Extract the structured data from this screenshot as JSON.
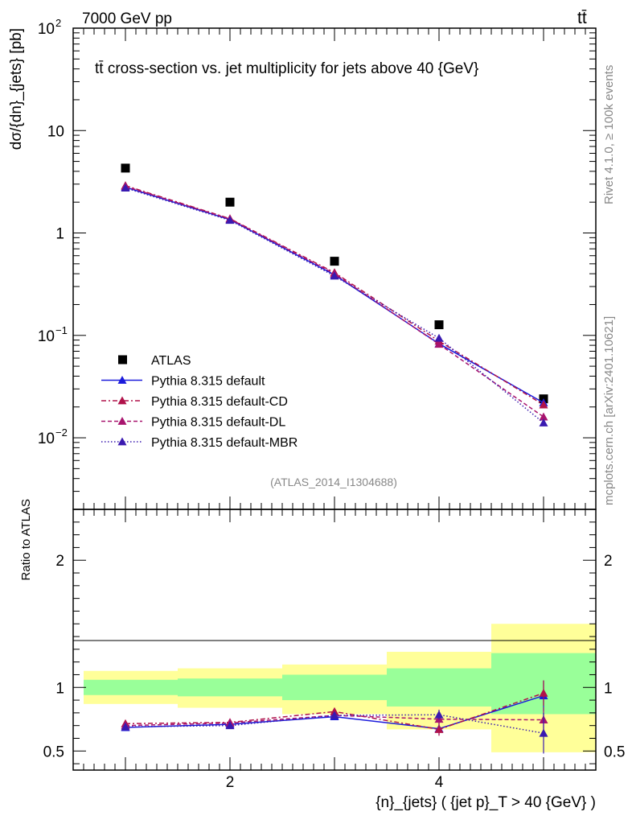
{
  "header": {
    "left": "7000 GeV pp",
    "right": "tt̄",
    "rivet_label": "Rivet 4.1.0, ≥ 100k events",
    "mcplots_label": "mcplots.cern.ch [arXiv:2401.10621]",
    "analysis_id": "(ATLAS_2014_I1304688)"
  },
  "chart_data": [
    {
      "type": "line",
      "title": "tt̄ cross-section vs. jet multiplicity for jets above 40 {GeV}",
      "ylabel": "dσ/{dn}_{jets} [pb]",
      "yscale": "log",
      "xlim": [
        0.5,
        5.5
      ],
      "ylim": [
        0.002,
        100
      ],
      "ytick_labels": [
        {
          "value": 0.01,
          "base": "10",
          "exp": "−2"
        },
        {
          "value": 0.1,
          "base": "10",
          "exp": "−1"
        },
        {
          "value": 1,
          "base": "1",
          "exp": ""
        },
        {
          "value": 10,
          "base": "10",
          "exp": ""
        },
        {
          "value": 100,
          "base": "10",
          "exp": "2"
        }
      ],
      "x": [
        1,
        2,
        3,
        4,
        5
      ],
      "series": [
        {
          "name": "ATLAS",
          "marker": "square",
          "color": "#000000",
          "dash": "",
          "values": [
            4.3,
            2.0,
            0.53,
            0.127,
            0.024
          ]
        },
        {
          "name": "Pythia 8.315 default",
          "marker": "triangle",
          "color": "#1a1adb",
          "dash": "",
          "values": [
            2.8,
            1.35,
            0.39,
            0.083,
            0.022
          ]
        },
        {
          "name": "Pythia 8.315 default-CD",
          "marker": "triangle",
          "color": "#b0124a",
          "dash": "6,3,2,3",
          "values": [
            2.9,
            1.38,
            0.41,
            0.088,
            0.021
          ]
        },
        {
          "name": "Pythia 8.315 default-DL",
          "marker": "triangle",
          "color": "#a8146e",
          "dash": "5,3",
          "values": [
            2.85,
            1.37,
            0.4,
            0.082,
            0.016
          ]
        },
        {
          "name": "Pythia 8.315 default-MBR",
          "marker": "triangle",
          "color": "#3a1ab0",
          "dash": "1.5,2.5",
          "values": [
            2.75,
            1.33,
            0.38,
            0.094,
            0.014
          ]
        }
      ]
    },
    {
      "type": "line",
      "title": "",
      "xlabel": "{n}_{jets} ( {jet p}_T > 40 {GeV} )",
      "ylabel": "Ratio to ATLAS",
      "xlim": [
        0.5,
        5.5
      ],
      "ylim": [
        0.35,
        2.4
      ],
      "ytick_labels": [
        {
          "value": 0.5,
          "label": "0.5"
        },
        {
          "value": 1,
          "label": "1"
        },
        {
          "value": 2,
          "label": "2"
        }
      ],
      "xtick_labels": [
        {
          "value": 2,
          "label": "2"
        },
        {
          "value": 4,
          "label": "4"
        }
      ],
      "bands": [
        {
          "x0": 0.6,
          "x1": 1.5,
          "yellow": [
            0.87,
            1.13
          ],
          "green": [
            0.94,
            1.06
          ]
        },
        {
          "x0": 1.5,
          "x1": 2.5,
          "yellow": [
            0.84,
            1.15
          ],
          "green": [
            0.93,
            1.07
          ]
        },
        {
          "x0": 2.5,
          "x1": 3.5,
          "yellow": [
            0.79,
            1.18
          ],
          "green": [
            0.9,
            1.1
          ]
        },
        {
          "x0": 3.5,
          "x1": 4.5,
          "yellow": [
            0.67,
            1.28
          ],
          "green": [
            0.85,
            1.15
          ]
        },
        {
          "x0": 4.5,
          "x1": 5.5,
          "yellow": [
            0.49,
            1.5
          ],
          "green": [
            0.79,
            1.27
          ]
        }
      ],
      "x": [
        1,
        2,
        3,
        4,
        5
      ],
      "series": [
        {
          "name": "Pythia 8.315 default",
          "color": "#1a1adb",
          "dash": "",
          "values": [
            0.685,
            0.71,
            0.77,
            0.675,
            0.935
          ],
          "err": [
            0.01,
            0.01,
            0.02,
            0.05,
            0.12
          ]
        },
        {
          "name": "Pythia 8.315 default-CD",
          "color": "#b0124a",
          "dash": "6,3,2,3",
          "values": [
            0.715,
            0.725,
            0.81,
            0.67,
            0.955
          ],
          "err": [
            0.01,
            0.01,
            0.02,
            0.05,
            0.1
          ]
        },
        {
          "name": "Pythia 8.315 default-DL",
          "color": "#a8146e",
          "dash": "5,3",
          "values": [
            0.7,
            0.72,
            0.78,
            0.75,
            0.745
          ],
          "err": [
            0.01,
            0.01,
            0.02,
            0.04,
            0.1
          ]
        },
        {
          "name": "Pythia 8.315 default-MBR",
          "color": "#3a1ab0",
          "dash": "1.5,2.5",
          "values": [
            0.69,
            0.7,
            0.78,
            0.785,
            0.64
          ],
          "err": [
            0.01,
            0.01,
            0.02,
            0.04,
            0.16
          ]
        }
      ]
    }
  ]
}
